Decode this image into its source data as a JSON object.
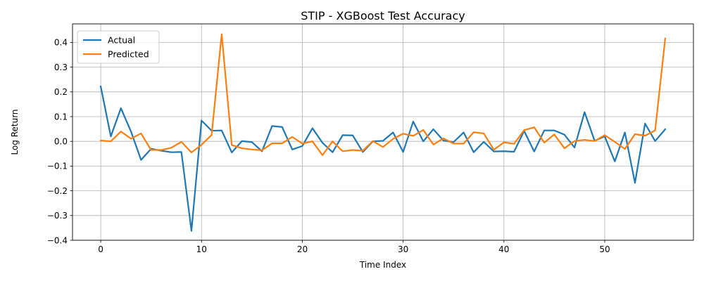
{
  "chart_data": {
    "type": "line",
    "title": "STIP - XGBoost Test Accuracy",
    "xlabel": "Time Index",
    "ylabel": "Log Return",
    "xlim": [
      -2.8,
      58.8
    ],
    "ylim": [
      -0.4,
      0.475
    ],
    "xticks": [
      0,
      10,
      20,
      30,
      40,
      50
    ],
    "yticks": [
      -0.4,
      -0.3,
      -0.2,
      -0.1,
      0.0,
      0.1,
      0.2,
      0.3,
      0.4
    ],
    "grid": true,
    "legend": "top-left",
    "x": [
      0,
      1,
      2,
      3,
      4,
      5,
      6,
      7,
      8,
      9,
      10,
      11,
      12,
      13,
      14,
      15,
      16,
      17,
      18,
      19,
      20,
      21,
      22,
      23,
      24,
      25,
      26,
      27,
      28,
      29,
      30,
      31,
      32,
      33,
      34,
      35,
      36,
      37,
      38,
      39,
      40,
      41,
      42,
      43,
      44,
      45,
      46,
      47,
      48,
      49,
      50,
      51,
      52,
      53,
      54,
      55,
      56
    ],
    "series": [
      {
        "name": "Actual",
        "color": "#1f77b4",
        "values": [
          0.222,
          0.02,
          0.134,
          0.04,
          -0.075,
          -0.03,
          -0.038,
          -0.044,
          -0.043,
          -0.362,
          0.084,
          0.043,
          0.044,
          -0.045,
          0.001,
          -0.003,
          -0.04,
          0.062,
          0.058,
          -0.033,
          -0.019,
          0.053,
          -0.006,
          -0.044,
          0.025,
          0.024,
          -0.043,
          0.0,
          0.002,
          0.036,
          -0.043,
          0.08,
          0.0,
          0.049,
          0.003,
          -0.003,
          0.036,
          -0.044,
          -0.002,
          -0.041,
          -0.04,
          -0.042,
          0.042,
          -0.041,
          0.044,
          0.044,
          0.027,
          -0.025,
          0.118,
          0.002,
          0.02,
          -0.081,
          0.036,
          -0.168,
          0.072,
          0.001,
          0.049
        ]
      },
      {
        "name": "Predicted",
        "color": "#ff7f0e",
        "values": [
          0.003,
          0.0,
          0.04,
          0.011,
          0.032,
          -0.035,
          -0.035,
          -0.026,
          -0.002,
          -0.045,
          -0.014,
          0.026,
          0.433,
          -0.015,
          -0.028,
          -0.033,
          -0.036,
          -0.008,
          -0.008,
          0.018,
          -0.009,
          0.0,
          -0.056,
          0.0,
          -0.04,
          -0.035,
          -0.038,
          0.001,
          -0.023,
          0.01,
          0.031,
          0.022,
          0.046,
          -0.013,
          0.012,
          -0.009,
          -0.009,
          0.037,
          0.032,
          -0.034,
          -0.004,
          -0.01,
          0.045,
          0.057,
          -0.005,
          0.028,
          -0.028,
          0.001,
          0.006,
          0.001,
          0.025,
          -0.002,
          -0.031,
          0.029,
          0.023,
          0.044,
          0.416
        ]
      }
    ]
  }
}
